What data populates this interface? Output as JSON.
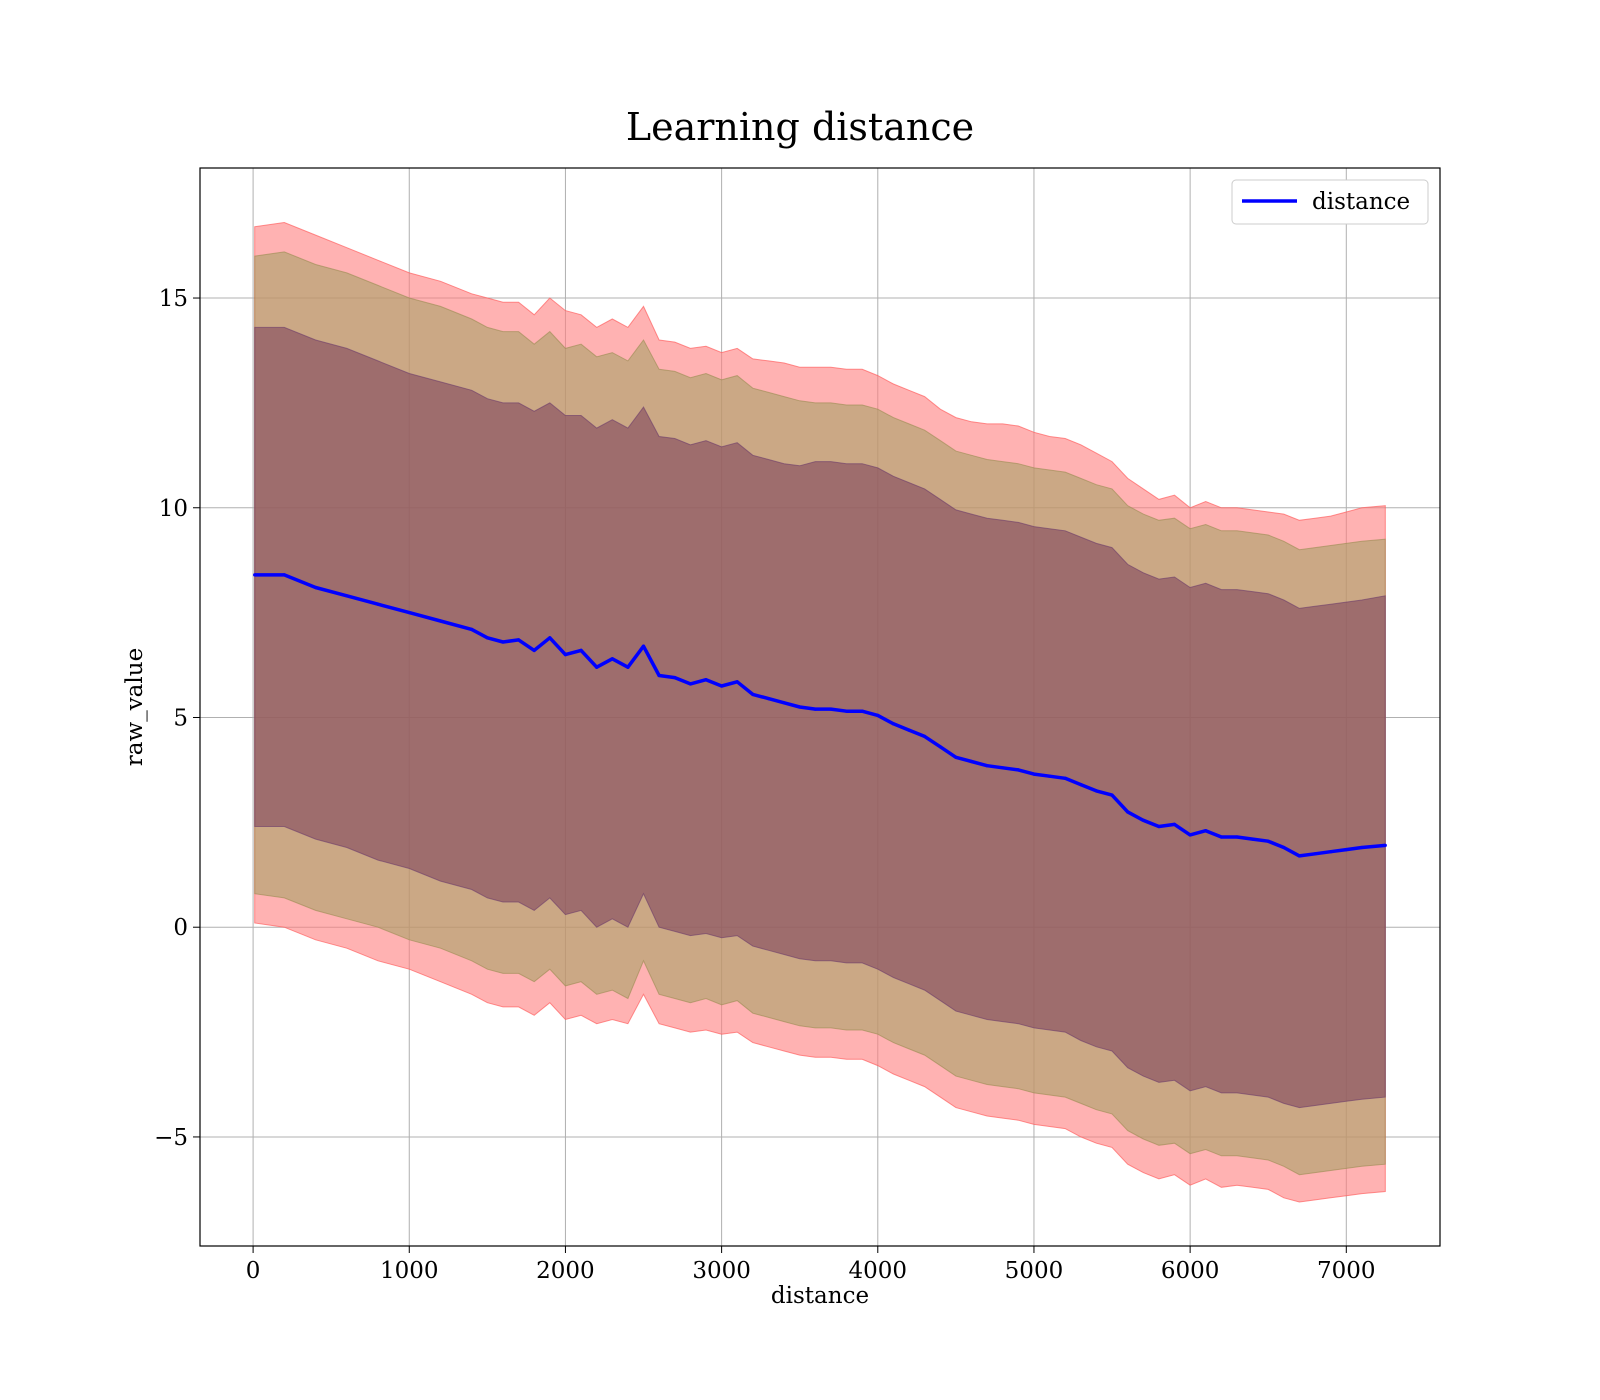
{
  "chart_data": {
    "type": "line",
    "title": "Learning distance",
    "xlabel": "distance",
    "ylabel": "raw_value",
    "xlim": [
      -340,
      7600
    ],
    "ylim": [
      -7.6,
      18.1
    ],
    "grid": true,
    "legend_position": "top-right",
    "x_ticks": [
      0,
      1000,
      2000,
      3000,
      4000,
      5000,
      6000,
      7000
    ],
    "y_ticks": [
      -5,
      0,
      5,
      10,
      15
    ],
    "x_tick_labels": [
      "0",
      "1000",
      "2000",
      "3000",
      "4000",
      "5000",
      "6000",
      "7000"
    ],
    "y_tick_labels": [
      "−5",
      "0",
      "5",
      "10",
      "15"
    ],
    "x": [
      10,
      200,
      400,
      600,
      800,
      1000,
      1200,
      1400,
      1500,
      1600,
      1700,
      1800,
      1900,
      2000,
      2100,
      2200,
      2300,
      2400,
      2500,
      2600,
      2700,
      2800,
      2900,
      3000,
      3100,
      3200,
      3300,
      3400,
      3500,
      3600,
      3700,
      3800,
      3900,
      4000,
      4100,
      4200,
      4300,
      4400,
      4500,
      4600,
      4700,
      4800,
      4900,
      5000,
      5100,
      5200,
      5300,
      5400,
      5500,
      5600,
      5700,
      5800,
      5900,
      6000,
      6100,
      6200,
      6300,
      6400,
      6500,
      6600,
      6700,
      6800,
      6900,
      7000,
      7100,
      7250
    ],
    "series": [
      {
        "name": "distance",
        "color": "#0000ff",
        "values": [
          8.4,
          8.4,
          8.1,
          7.9,
          7.7,
          7.5,
          7.3,
          7.1,
          6.9,
          6.8,
          6.85,
          6.6,
          6.9,
          6.5,
          6.6,
          6.2,
          6.4,
          6.2,
          6.7,
          6.0,
          5.95,
          5.8,
          5.9,
          5.75,
          5.85,
          5.55,
          5.45,
          5.35,
          5.25,
          5.2,
          5.2,
          5.15,
          5.15,
          5.05,
          4.85,
          4.7,
          4.55,
          4.3,
          4.05,
          3.95,
          3.85,
          3.8,
          3.75,
          3.65,
          3.6,
          3.55,
          3.4,
          3.25,
          3.15,
          2.75,
          2.55,
          2.4,
          2.45,
          2.2,
          2.3,
          2.15,
          2.15,
          2.1,
          2.05,
          1.9,
          1.7,
          1.75,
          1.8,
          1.85,
          1.9,
          1.95
        ]
      }
    ],
    "bands": [
      {
        "color": "#ff7f7f",
        "upper": [
          16.7,
          16.8,
          16.5,
          16.2,
          15.9,
          15.6,
          15.4,
          15.1,
          15.0,
          14.9,
          14.9,
          14.6,
          15.0,
          14.7,
          14.6,
          14.3,
          14.5,
          14.3,
          14.8,
          14.0,
          13.95,
          13.8,
          13.85,
          13.7,
          13.8,
          13.55,
          13.5,
          13.45,
          13.35,
          13.35,
          13.35,
          13.3,
          13.3,
          13.15,
          12.95,
          12.8,
          12.65,
          12.35,
          12.15,
          12.05,
          12.0,
          12.0,
          11.95,
          11.8,
          11.7,
          11.65,
          11.5,
          11.3,
          11.1,
          10.7,
          10.45,
          10.2,
          10.3,
          10.0,
          10.15,
          10.0,
          10.0,
          9.95,
          9.9,
          9.85,
          9.7,
          9.75,
          9.8,
          9.9,
          10.0,
          10.05
        ]
      },
      {
        "color": "#ff7f7f",
        "upper": [
          0.1,
          0.0,
          -0.3,
          -0.5,
          -0.8,
          -1.0,
          -1.3,
          -1.6,
          -1.8,
          -1.9,
          -1.9,
          -2.1,
          -1.8,
          -2.2,
          -2.1,
          -2.3,
          -2.2,
          -2.3,
          -1.6,
          -2.3,
          -2.4,
          -2.5,
          -2.45,
          -2.55,
          -2.5,
          -2.75,
          -2.85,
          -2.95,
          -3.05,
          -3.1,
          -3.1,
          -3.15,
          -3.15,
          -3.3,
          -3.5,
          -3.65,
          -3.8,
          -4.05,
          -4.3,
          -4.4,
          -4.5,
          -4.55,
          -4.6,
          -4.7,
          -4.75,
          -4.8,
          -5.0,
          -5.15,
          -5.25,
          -5.65,
          -5.85,
          -6.0,
          -5.9,
          -6.15,
          -6.0,
          -6.2,
          -6.15,
          -6.2,
          -6.25,
          -6.45,
          -6.55,
          -6.5,
          -6.45,
          -6.4,
          -6.35,
          -6.3
        ]
      },
      {
        "color": "#a0a060",
        "upper": [
          16.0,
          16.1,
          15.8,
          15.6,
          15.3,
          15.0,
          14.8,
          14.5,
          14.3,
          14.2,
          14.2,
          13.9,
          14.2,
          13.8,
          13.9,
          13.6,
          13.7,
          13.5,
          14.0,
          13.3,
          13.25,
          13.1,
          13.2,
          13.05,
          13.15,
          12.85,
          12.75,
          12.65,
          12.55,
          12.5,
          12.5,
          12.45,
          12.45,
          12.35,
          12.15,
          12.0,
          11.85,
          11.6,
          11.35,
          11.25,
          11.15,
          11.1,
          11.05,
          10.95,
          10.9,
          10.85,
          10.7,
          10.55,
          10.45,
          10.05,
          9.85,
          9.7,
          9.75,
          9.5,
          9.6,
          9.45,
          9.45,
          9.4,
          9.35,
          9.2,
          9.0,
          9.05,
          9.1,
          9.15,
          9.2,
          9.25
        ],
        "lower": [
          0.8,
          0.7,
          0.4,
          0.2,
          0.0,
          -0.3,
          -0.5,
          -0.8,
          -1.0,
          -1.1,
          -1.1,
          -1.3,
          -1.0,
          -1.4,
          -1.3,
          -1.6,
          -1.5,
          -1.7,
          -0.8,
          -1.6,
          -1.7,
          -1.8,
          -1.7,
          -1.85,
          -1.75,
          -2.05,
          -2.15,
          -2.25,
          -2.35,
          -2.4,
          -2.4,
          -2.45,
          -2.45,
          -2.55,
          -2.75,
          -2.9,
          -3.05,
          -3.3,
          -3.55,
          -3.65,
          -3.75,
          -3.8,
          -3.85,
          -3.95,
          -4.0,
          -4.05,
          -4.2,
          -4.35,
          -4.45,
          -4.85,
          -5.05,
          -5.2,
          -5.15,
          -5.4,
          -5.3,
          -5.45,
          -5.45,
          -5.5,
          -5.55,
          -5.7,
          -5.9,
          -5.85,
          -5.8,
          -5.75,
          -5.7,
          -5.65
        ]
      },
      {
        "color": "#7a3c5a",
        "upper": [
          14.3,
          14.3,
          14.0,
          13.8,
          13.5,
          13.2,
          13.0,
          12.8,
          12.6,
          12.5,
          12.5,
          12.3,
          12.5,
          12.2,
          12.2,
          11.9,
          12.1,
          11.9,
          12.4,
          11.7,
          11.65,
          11.5,
          11.6,
          11.45,
          11.55,
          11.25,
          11.15,
          11.05,
          11.0,
          11.1,
          11.1,
          11.05,
          11.05,
          10.95,
          10.75,
          10.6,
          10.45,
          10.2,
          9.95,
          9.85,
          9.75,
          9.7,
          9.65,
          9.55,
          9.5,
          9.45,
          9.3,
          9.15,
          9.05,
          8.65,
          8.45,
          8.3,
          8.35,
          8.1,
          8.2,
          8.05,
          8.05,
          8.0,
          7.95,
          7.8,
          7.6,
          7.65,
          7.7,
          7.75,
          7.8,
          7.9
        ],
        "lower": [
          2.4,
          2.4,
          2.1,
          1.9,
          1.6,
          1.4,
          1.1,
          0.9,
          0.7,
          0.6,
          0.6,
          0.4,
          0.7,
          0.3,
          0.4,
          0.0,
          0.2,
          0.0,
          0.8,
          0.0,
          -0.1,
          -0.2,
          -0.15,
          -0.25,
          -0.2,
          -0.45,
          -0.55,
          -0.65,
          -0.75,
          -0.8,
          -0.8,
          -0.85,
          -0.85,
          -1.0,
          -1.2,
          -1.35,
          -1.5,
          -1.75,
          -2.0,
          -2.1,
          -2.2,
          -2.25,
          -2.3,
          -2.4,
          -2.45,
          -2.5,
          -2.7,
          -2.85,
          -2.95,
          -3.35,
          -3.55,
          -3.7,
          -3.65,
          -3.9,
          -3.8,
          -3.95,
          -3.95,
          -4.0,
          -4.05,
          -4.2,
          -4.3,
          -4.25,
          -4.2,
          -4.15,
          -4.1,
          -4.05
        ]
      }
    ]
  }
}
